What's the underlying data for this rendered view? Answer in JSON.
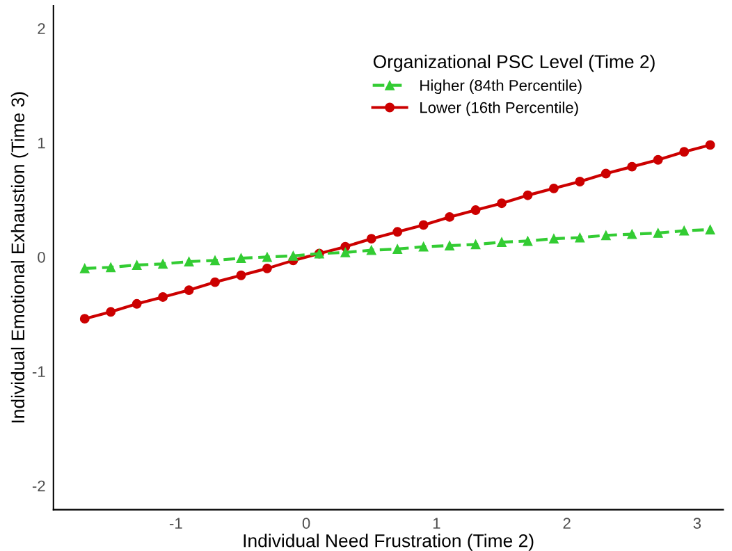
{
  "chart_data": {
    "type": "line",
    "xlabel": "Individual Need Frustration (Time 2)",
    "ylabel": "Individual Emotional Exhaustion (Time 3)",
    "legend_title": "Organizational PSC Level (Time 2)",
    "x": [
      -1.7,
      -1.5,
      -1.3,
      -1.1,
      -0.9,
      -0.7,
      -0.5,
      -0.3,
      -0.1,
      0.1,
      0.3,
      0.5,
      0.7,
      0.9,
      1.1,
      1.3,
      1.5,
      1.7,
      1.9,
      2.1,
      2.3,
      2.5,
      2.7,
      2.9,
      3.1
    ],
    "series": [
      {
        "name": "Higher (84th Percentile)",
        "color": "#33cc33",
        "marker": "triangle",
        "line_style": "dashed",
        "values": [
          -0.1,
          -0.09,
          -0.07,
          -0.06,
          -0.04,
          -0.03,
          -0.01,
          0.0,
          0.01,
          0.03,
          0.04,
          0.06,
          0.07,
          0.09,
          0.1,
          0.11,
          0.13,
          0.14,
          0.16,
          0.17,
          0.19,
          0.2,
          0.21,
          0.23,
          0.24
        ]
      },
      {
        "name": "Lower (16th Percentile)",
        "color": "#cc0000",
        "marker": "circle",
        "line_style": "solid",
        "values": [
          -0.54,
          -0.48,
          -0.41,
          -0.35,
          -0.29,
          -0.22,
          -0.16,
          -0.1,
          -0.03,
          0.03,
          0.09,
          0.16,
          0.22,
          0.28,
          0.35,
          0.41,
          0.47,
          0.54,
          0.6,
          0.66,
          0.73,
          0.79,
          0.85,
          0.92,
          0.98
        ]
      }
    ],
    "xlim": [
      -1.94,
      3.2
    ],
    "xticks": [
      {
        "value": -1,
        "label": "-1"
      },
      0,
      1,
      2,
      3
    ],
    "ylim": [
      -2.21,
      2.2
    ],
    "yticks": [
      {
        "value": -2,
        "label": "-2"
      },
      {
        "value": -1,
        "label": "-1"
      },
      0,
      1,
      2
    ],
    "grid": false,
    "legend": "top right"
  }
}
